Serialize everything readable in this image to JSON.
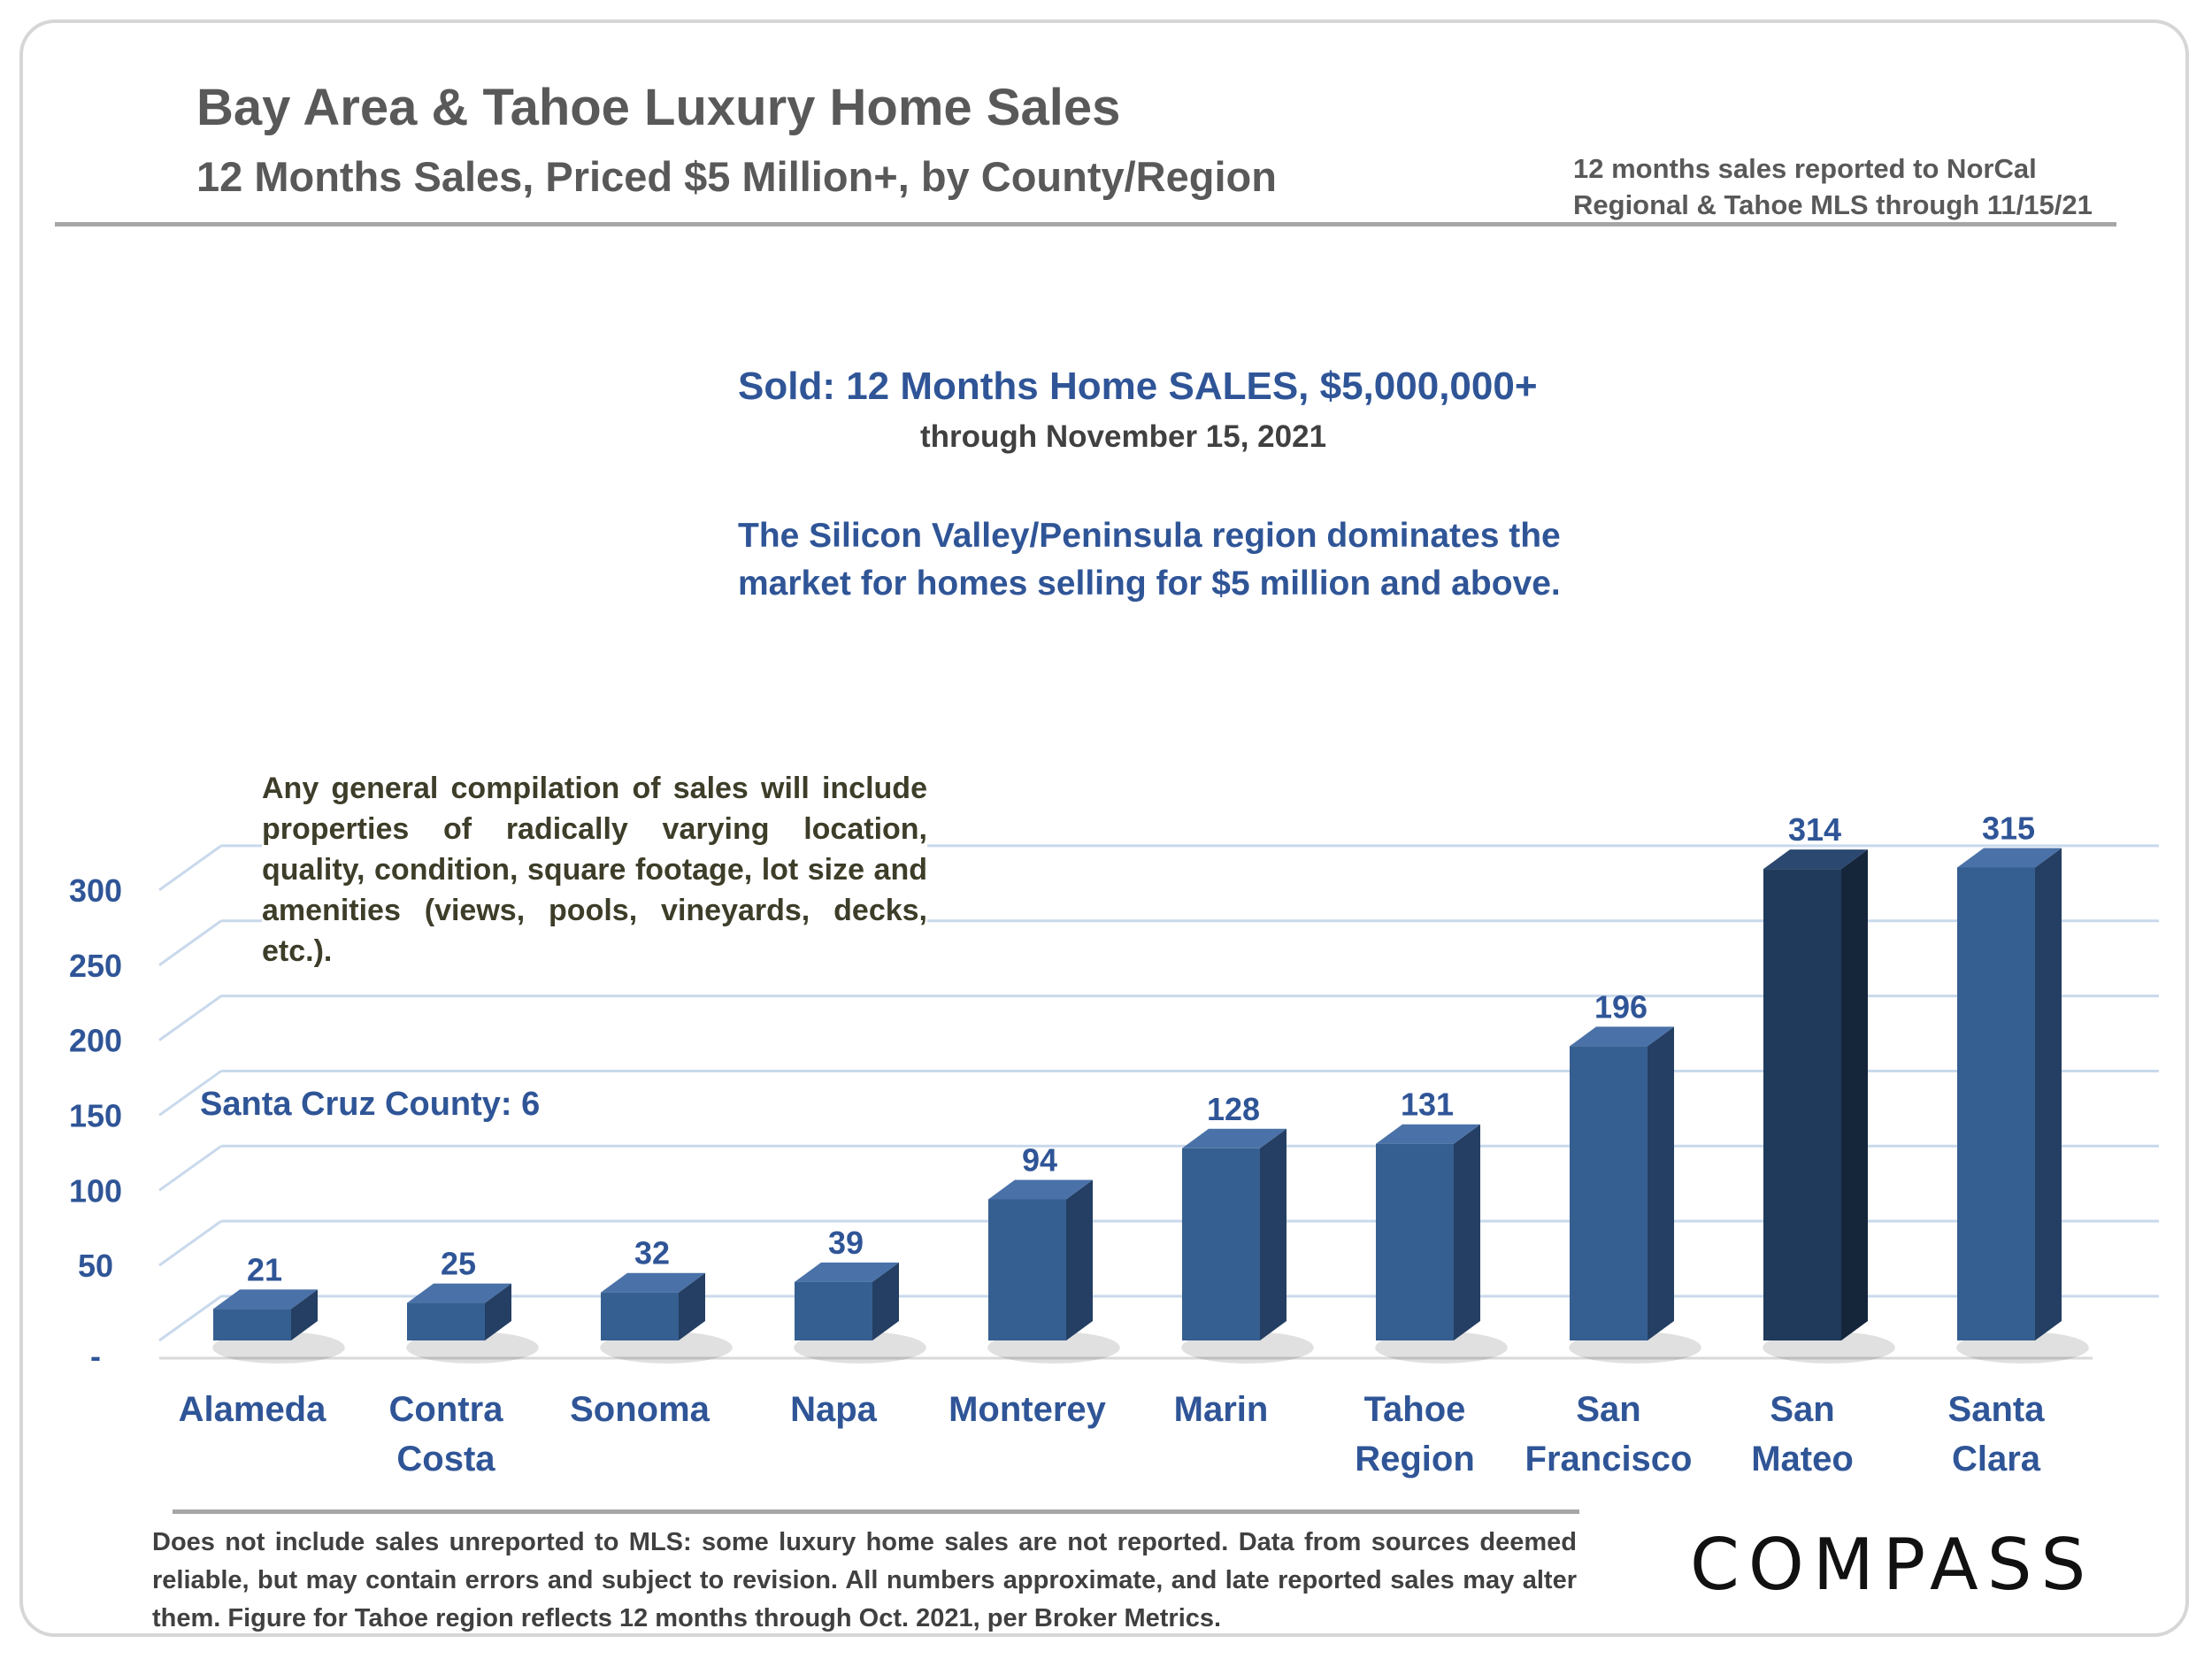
{
  "header": {
    "title": "Bay Area & Tahoe Luxury Home Sales",
    "subtitle": "12 Months Sales, Priced $5 Million+, by County/Region",
    "source_note": "12 months sales reported to NorCal Regional & Tahoe MLS through 11/15/21"
  },
  "annotations": {
    "heading": "Sold: 12 Months Home SALES, $5,000,000+",
    "date": "through November 15, 2021",
    "dominates": "The Silicon Valley/Peninsula region dominates the market for homes selling for $5 million and above.",
    "disclaimer": "Any general compilation of sales will include properties of radically varying location, quality, condition, square footage, lot size and amenities (views, pools, vineyards, decks, etc.).",
    "santa_cruz": "Santa Cruz County:  6"
  },
  "footnote": "Does not include sales unreported to MLS: some luxury home sales are not reported. Data from sources deemed reliable, but may contain errors and subject to revision. All numbers approximate, and late reported sales may alter them. Figure for Tahoe region reflects 12 months through Oct. 2021, per Broker Metrics.",
  "logo": "COMPASS",
  "colors": {
    "bar": "#365f91",
    "bar_highlight": "#1f3a5a",
    "label": "#2f5597",
    "grid": "#c9d9ec"
  },
  "chart_data": {
    "type": "bar",
    "categories": [
      [
        "Alameda"
      ],
      [
        "Contra",
        "Costa"
      ],
      [
        "Sonoma"
      ],
      [
        "Napa"
      ],
      [
        "Monterey"
      ],
      [
        "Marin"
      ],
      [
        "Tahoe",
        "Region"
      ],
      [
        "San",
        "Francisco"
      ],
      [
        "San",
        "Mateo"
      ],
      [
        "Santa",
        "Clara"
      ]
    ],
    "values": [
      21,
      25,
      32,
      39,
      94,
      128,
      131,
      196,
      314,
      315
    ],
    "highlight_index": 8,
    "ylim": [
      0,
      300
    ],
    "yticks": [
      0,
      50,
      100,
      150,
      200,
      250,
      300
    ],
    "ytick_labels": [
      "-",
      "50",
      "100",
      "150",
      "200",
      "250",
      "300"
    ],
    "grid": true,
    "three_d": true
  }
}
